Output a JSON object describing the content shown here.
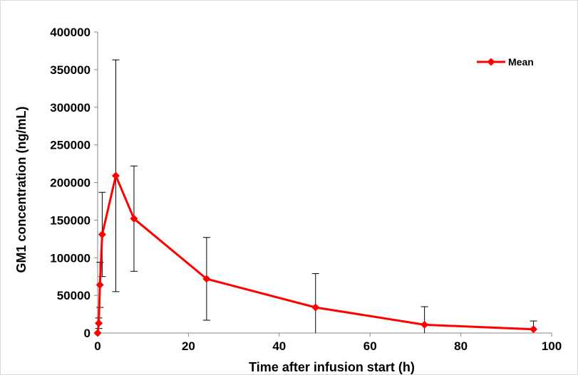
{
  "chart_data": {
    "type": "line",
    "title": "",
    "xlabel": "Time after infusion start (h)",
    "ylabel": "GM1 concentration (ng/mL)",
    "xlim": [
      0,
      100
    ],
    "ylim": [
      0,
      400000
    ],
    "x_ticks": [
      0,
      20,
      40,
      60,
      80,
      100
    ],
    "y_ticks": [
      0,
      50000,
      100000,
      150000,
      200000,
      250000,
      300000,
      350000,
      400000
    ],
    "grid": false,
    "legend": "top-right",
    "colors": {
      "series": "#ff0000",
      "error_bars": "#000000"
    },
    "series": [
      {
        "name": "Mean",
        "x": [
          0,
          0.25,
          0.5,
          1,
          4,
          8,
          24,
          48,
          72,
          96
        ],
        "y": [
          0,
          13000,
          64000,
          131000,
          209000,
          152000,
          72000,
          34000,
          11000,
          5000
        ],
        "error": [
          0,
          7000,
          30000,
          56000,
          154000,
          70000,
          55000,
          45000,
          24000,
          11000
        ]
      }
    ]
  }
}
